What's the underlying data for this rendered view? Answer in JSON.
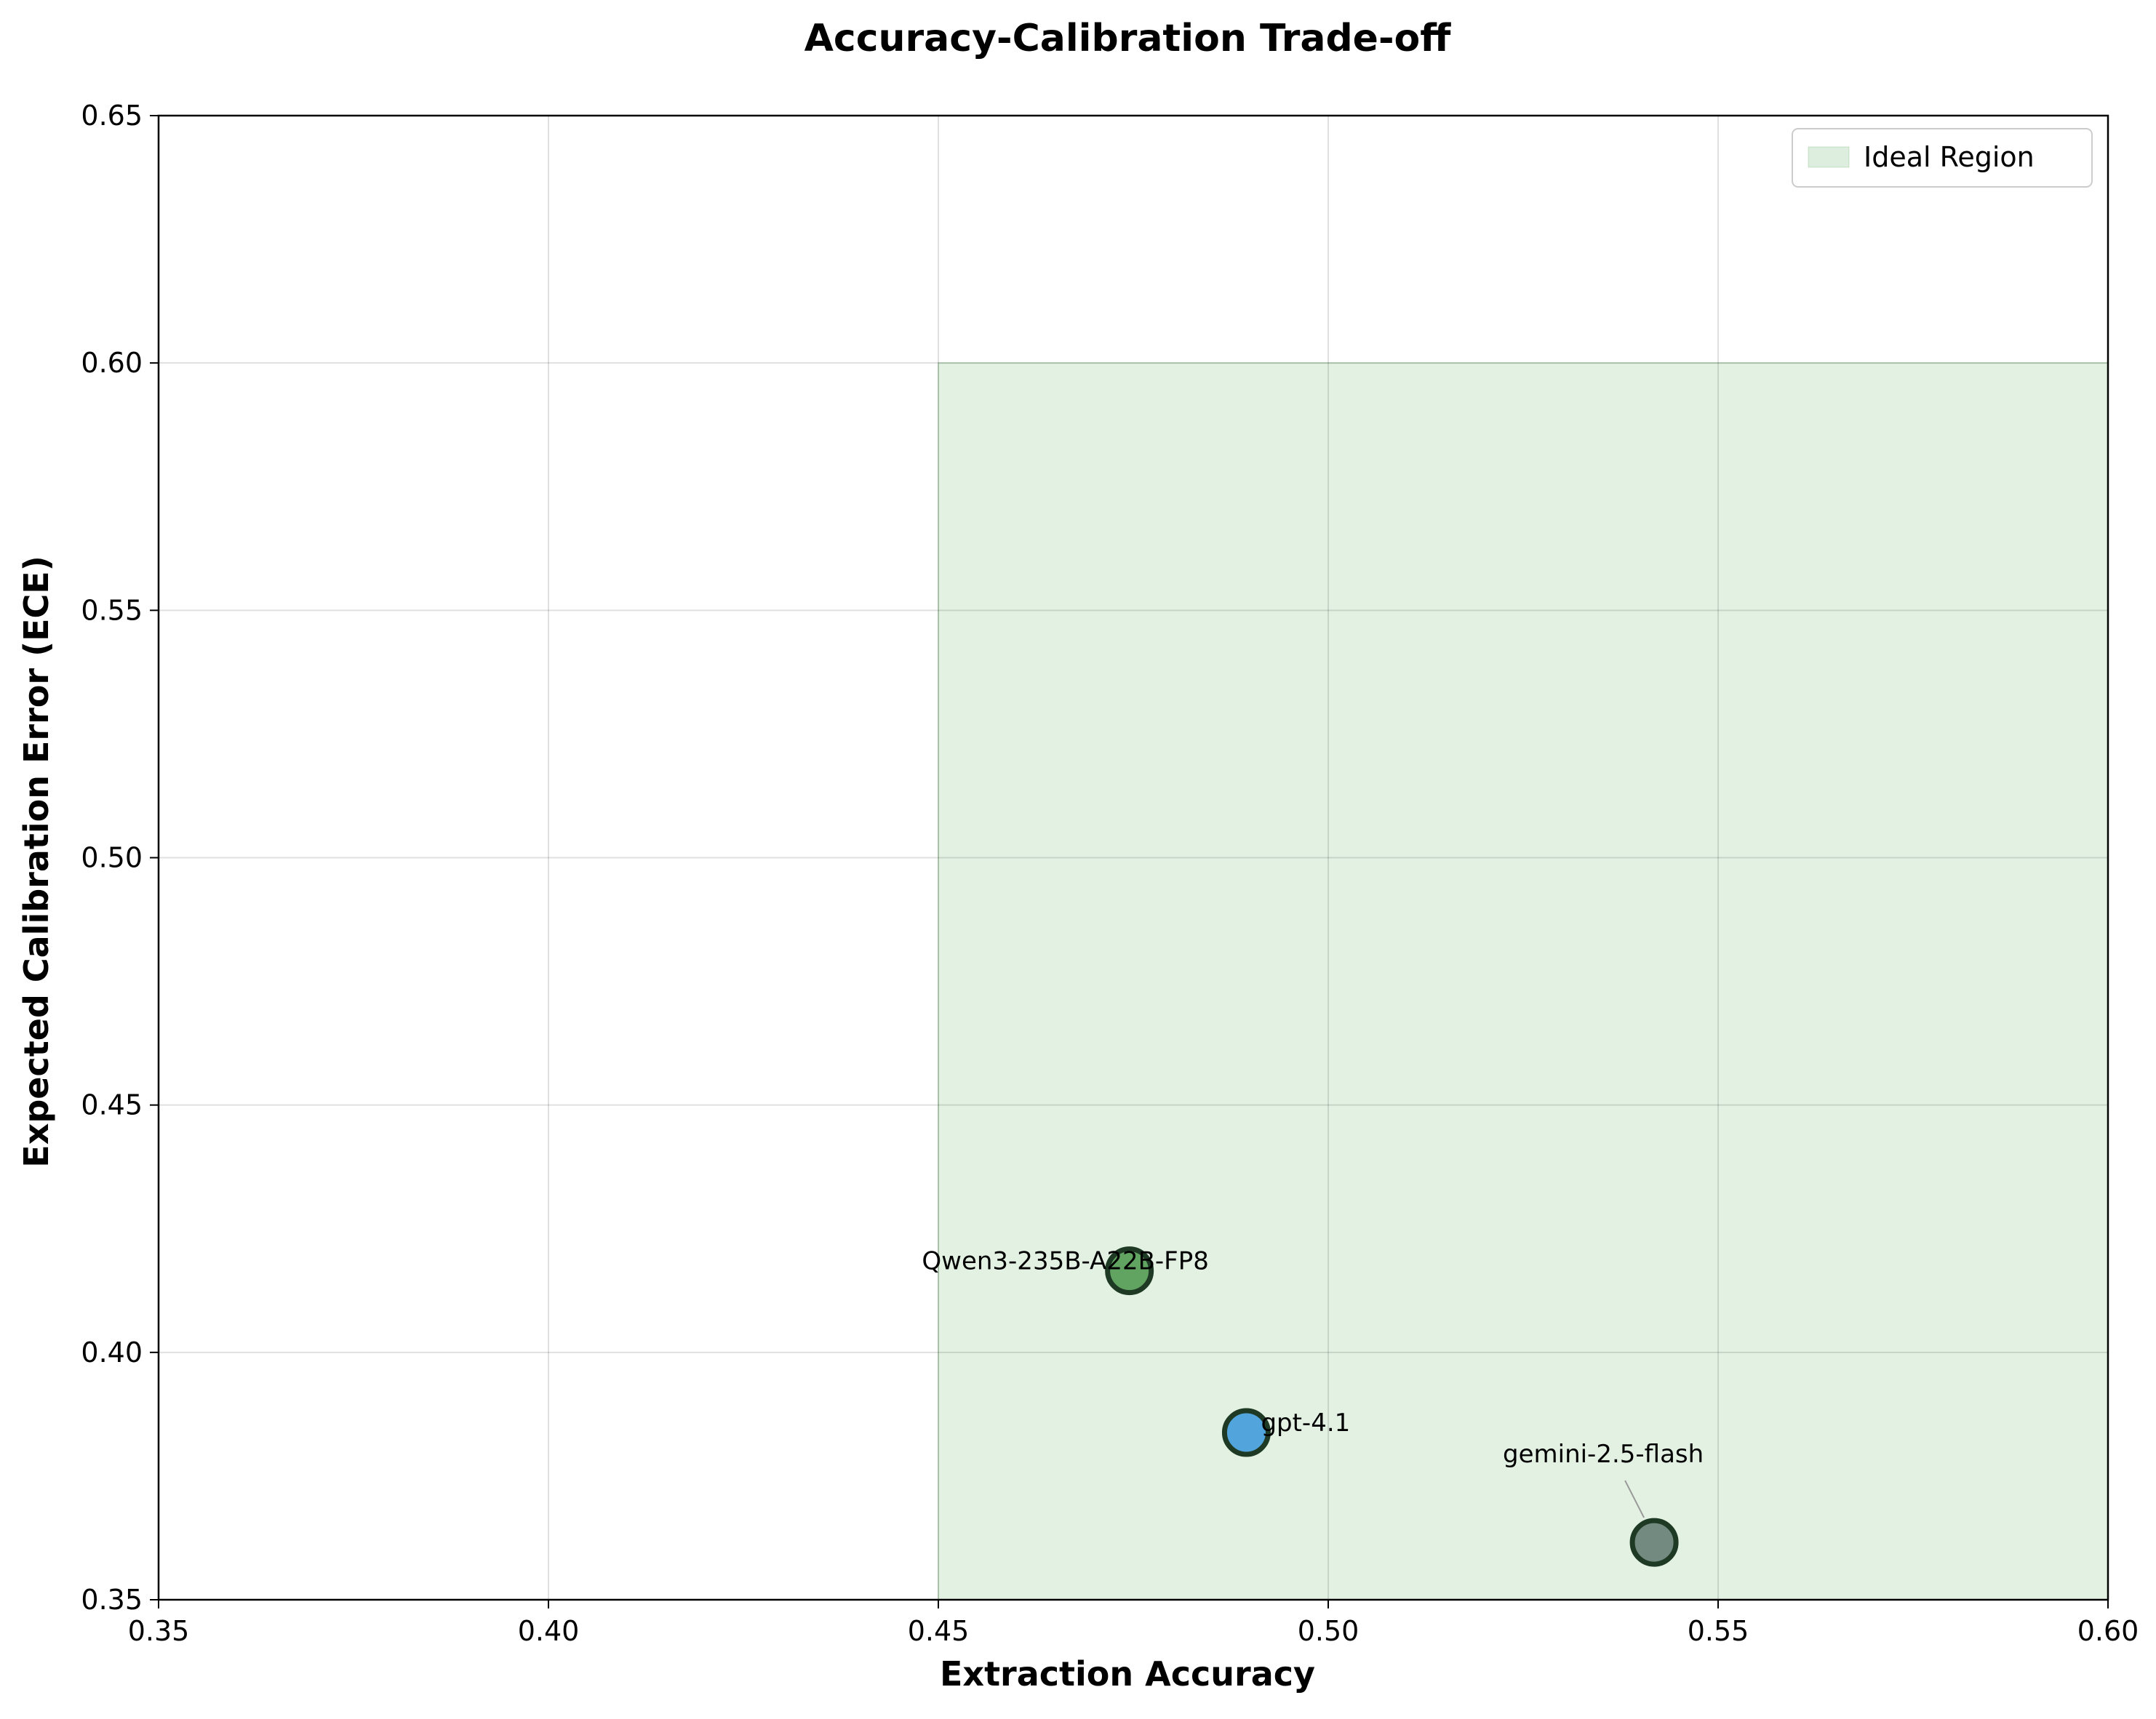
{
  "chart_data": {
    "type": "scatter",
    "title": "Accuracy-Calibration Trade-off",
    "xlabel": "Extraction Accuracy",
    "ylabel": "Expected Calibration Error (ECE)",
    "xlim": [
      0.35,
      0.6
    ],
    "ylim": [
      0.35,
      0.65
    ],
    "xticks": [
      "0.35",
      "0.40",
      "0.45",
      "0.50",
      "0.55",
      "0.60"
    ],
    "yticks": [
      "0.35",
      "0.40",
      "0.45",
      "0.50",
      "0.55",
      "0.60",
      "0.65"
    ],
    "grid": true,
    "legend": {
      "placement": "top-right",
      "entries": [
        {
          "label": "Ideal Region",
          "color": "#c8e3c8"
        }
      ]
    },
    "region": {
      "name": "Ideal Region",
      "x": [
        0.45,
        0.6
      ],
      "y": [
        0.35,
        0.6
      ],
      "color": "#c8e3c8"
    },
    "points": [
      {
        "label": "Qwen3-235B-A22B-FP8",
        "x": 0.4745,
        "y": 0.4165,
        "color": "#5a9e5a"
      },
      {
        "label": "gpt-4.1",
        "x": 0.4895,
        "y": 0.3838,
        "color": "#4a9fdc"
      },
      {
        "label": "gemini-2.5-flash",
        "x": 0.5418,
        "y": 0.3616,
        "color": "#6b847a"
      }
    ]
  }
}
